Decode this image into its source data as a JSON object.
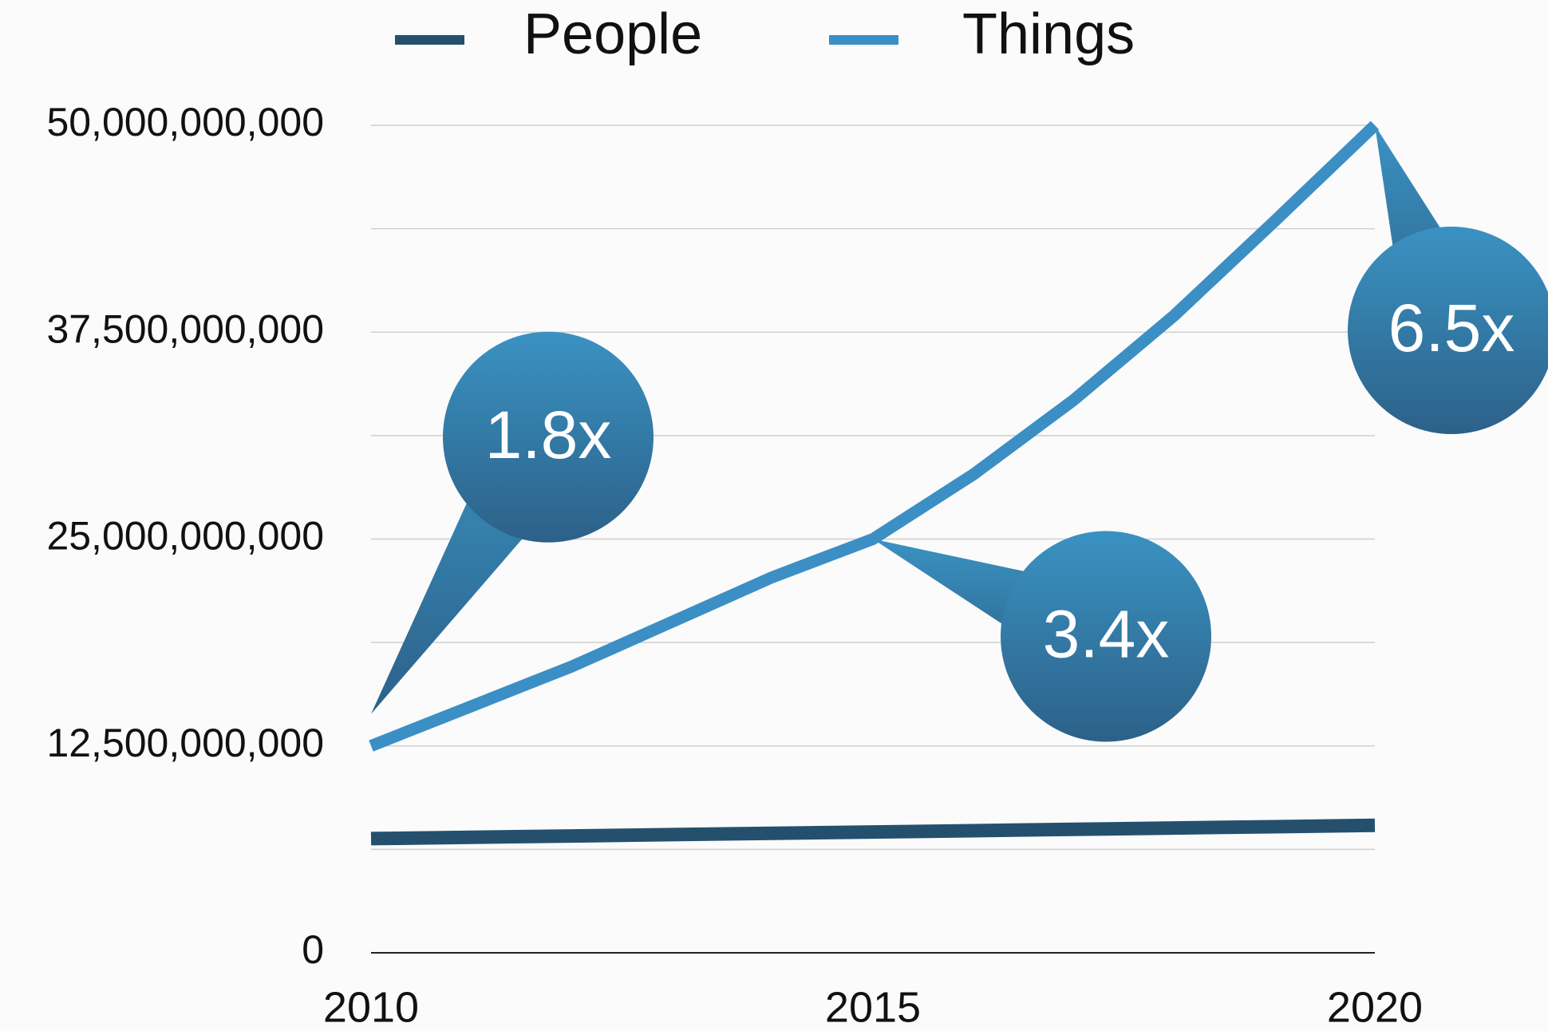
{
  "chart_data": {
    "type": "line",
    "x": [
      2010,
      2011,
      2012,
      2013,
      2014,
      2015,
      2016,
      2017,
      2018,
      2019,
      2020
    ],
    "series": [
      {
        "name": "People",
        "color": "#24506e",
        "values": [
          6900000000,
          6980000000,
          7060000000,
          7140000000,
          7220000000,
          7300000000,
          7380000000,
          7460000000,
          7540000000,
          7620000000,
          7700000000
        ]
      },
      {
        "name": "Things",
        "color": "#3b8fc4",
        "values": [
          12500000000,
          14900000000,
          17300000000,
          20000000000,
          22700000000,
          25000000000,
          28900000000,
          33400000000,
          38500000000,
          44200000000,
          50000000000
        ]
      }
    ],
    "xlim": [
      2010,
      2020
    ],
    "xticks": [
      2010,
      2015,
      2020
    ],
    "ylim": [
      0,
      50000000000
    ],
    "yticks": [
      0,
      {
        "value": 12500000000,
        "label": "12,500,000,000"
      },
      {
        "value": 25000000000,
        "label": "25,000,000,000"
      },
      {
        "value": 37500000000,
        "label": "37,500,000,000"
      },
      {
        "value": 50000000000,
        "label": "50,000,000,000"
      }
    ],
    "grid": true,
    "legend": "top",
    "annotations": [
      {
        "text": "1.8x",
        "x": 2010
      },
      {
        "text": "3.4x",
        "x": 2015
      },
      {
        "text": "6.5x",
        "x": 2020
      }
    ]
  }
}
